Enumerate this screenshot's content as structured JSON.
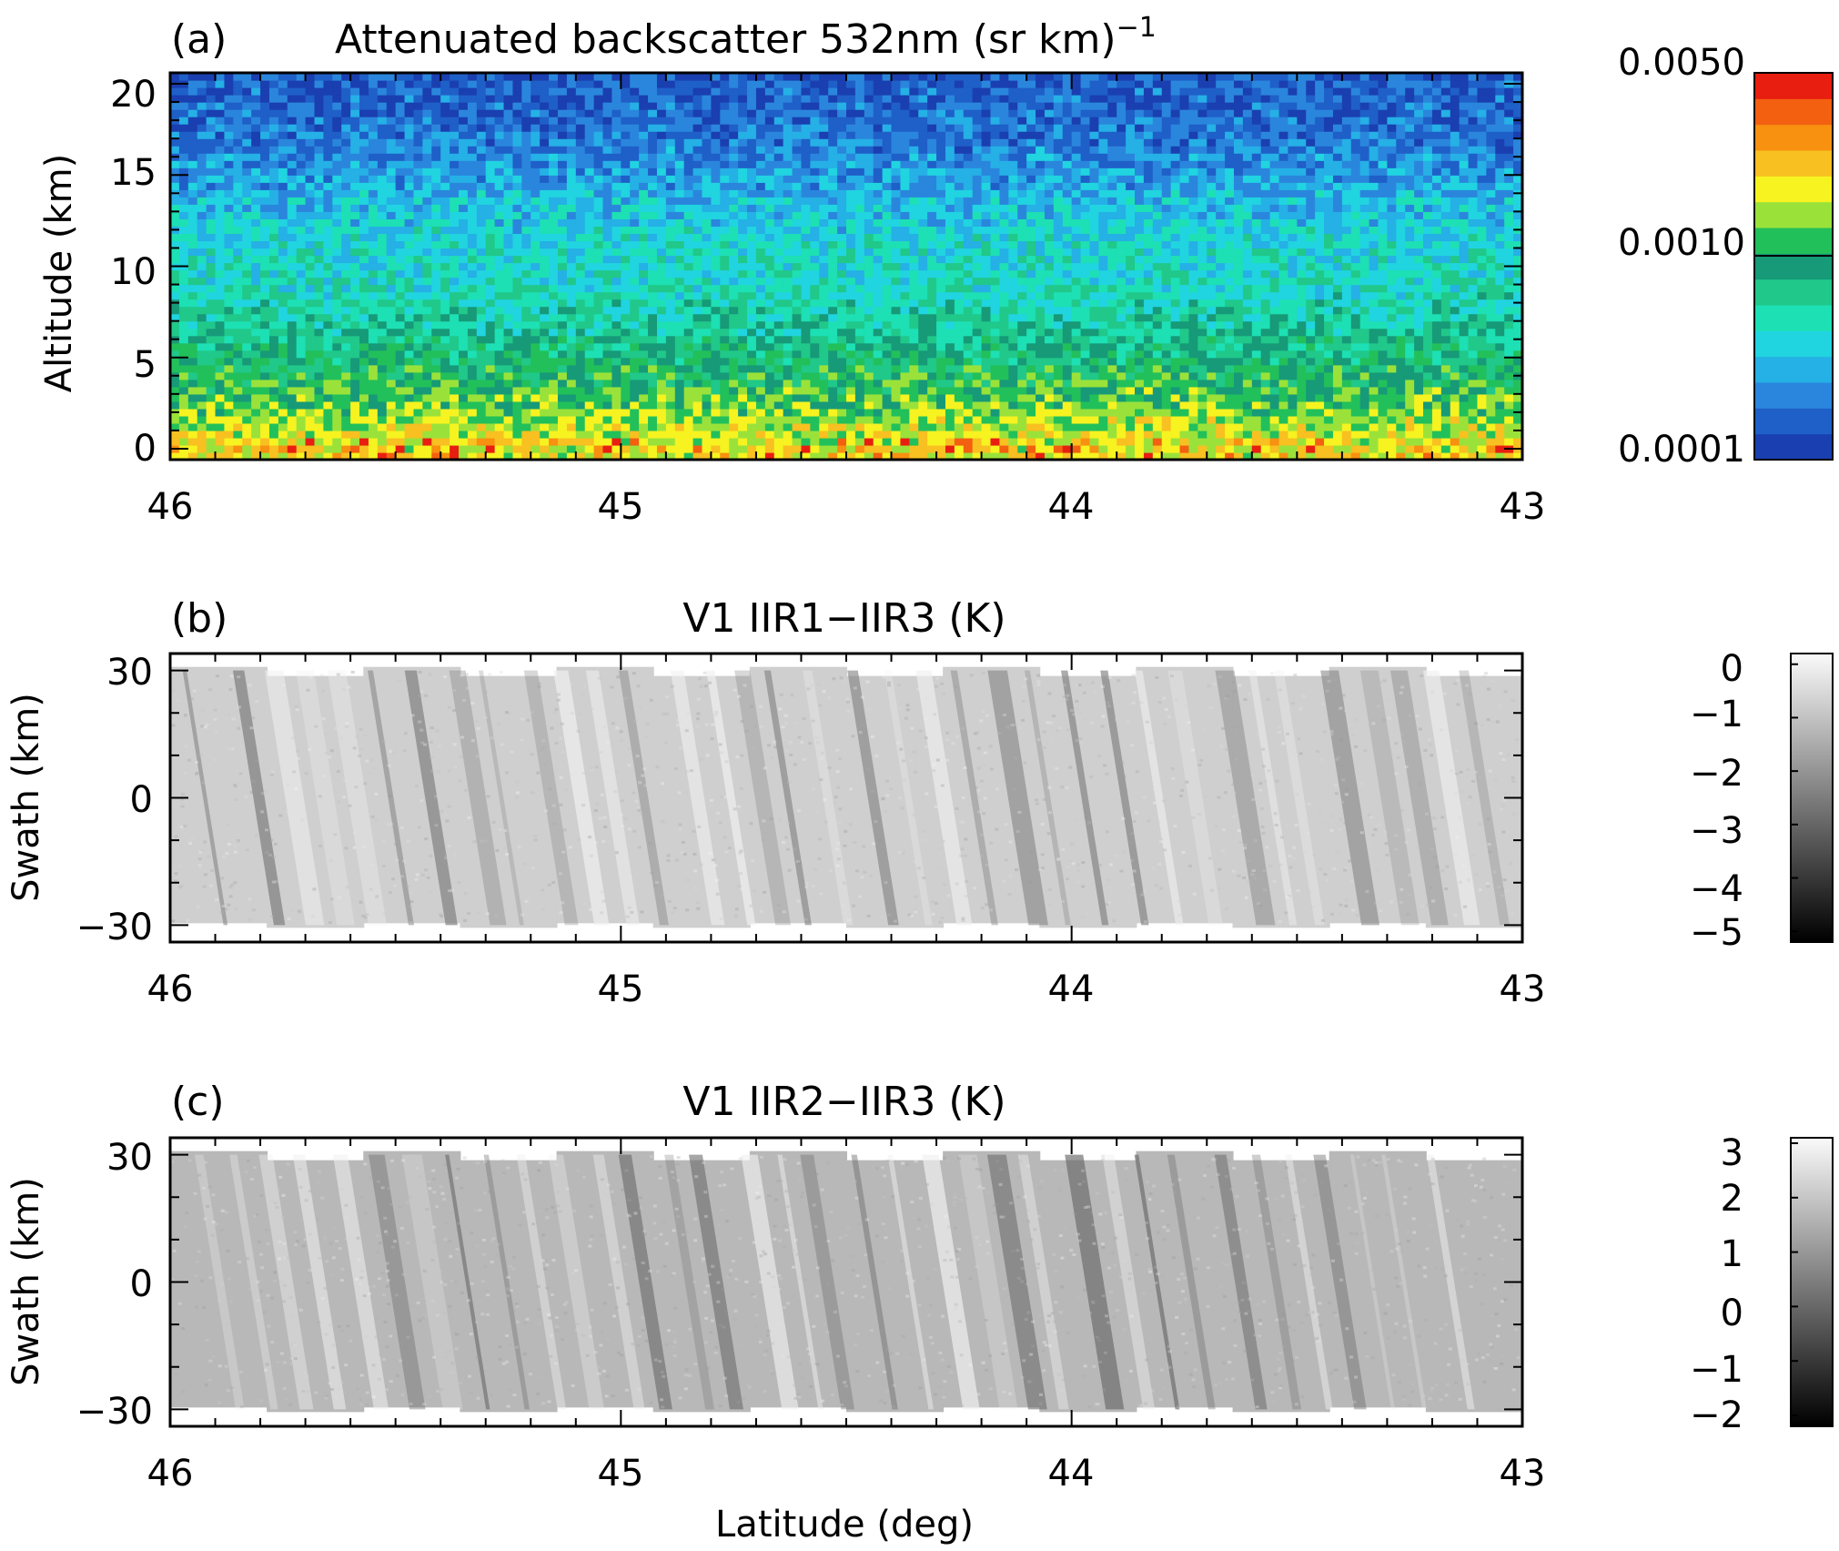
{
  "figure": {
    "panels": [
      {
        "id": "a",
        "label": "(a)",
        "title_main": "Attenuated backscatter 532nm (sr km)",
        "title_exponent": "−1",
        "ylabel": "Altitude (km)",
        "xticks": [
          "46",
          "45",
          "44",
          "43"
        ],
        "yticks": [
          "0",
          "5",
          "10",
          "15",
          "20"
        ],
        "colorbar_ticks": [
          "0.0050",
          "0.0010",
          "0.0001"
        ]
      },
      {
        "id": "b",
        "label": "(b)",
        "title_main": "V1 IIR1−IIR3 (K)",
        "ylabel": "Swath (km)",
        "xticks": [
          "46",
          "45",
          "44",
          "43"
        ],
        "yticks": [
          "−30",
          "0",
          "30"
        ],
        "colorbar_ticks": [
          "0",
          "−1",
          "−2",
          "−3",
          "−4",
          "−5"
        ]
      },
      {
        "id": "c",
        "label": "(c)",
        "title_main": "V1 IIR2−IIR3 (K)",
        "ylabel": "Swath (km)",
        "xlabel": "Latitude (deg)",
        "xticks": [
          "46",
          "45",
          "44",
          "43"
        ],
        "yticks": [
          "−30",
          "0",
          "30"
        ],
        "colorbar_ticks": [
          "3",
          "2",
          "1",
          "0",
          "−1",
          "−2"
        ]
      }
    ]
  },
  "chart_data": [
    {
      "type": "heatmap",
      "panel": "a",
      "x_name": "Latitude (deg)",
      "xlim": [
        46,
        43
      ],
      "y_name": "Altitude (km)",
      "ylim": [
        -0.6,
        20.6
      ],
      "colorbar": {
        "scale": "log",
        "range": [
          0.0001,
          0.005
        ],
        "ticks": [
          0.005,
          0.001,
          0.0001
        ],
        "palette": "rainbow"
      },
      "colormap": [
        "#1a3fb0",
        "#1f5fc8",
        "#2a86dc",
        "#25b0e6",
        "#20d4e0",
        "#1de0b4",
        "#20c88a",
        "#169a78",
        "#22c05a",
        "#9ae23a",
        "#f6f320",
        "#f8c020",
        "#f89010",
        "#f36010",
        "#e81e10"
      ],
      "description_profile": [
        {
          "altitude_km": 0.0,
          "level": 10
        },
        {
          "altitude_km": 1.5,
          "level": 9
        },
        {
          "altitude_km": 3.0,
          "level": 8
        },
        {
          "altitude_km": 5.0,
          "level": 6.5
        },
        {
          "altitude_km": 8.0,
          "level": 5
        },
        {
          "altitude_km": 12.0,
          "level": 4
        },
        {
          "altitude_km": 15.0,
          "level": 2.5
        },
        {
          "altitude_km": 18.0,
          "level": 1.2
        },
        {
          "altitude_km": 20.5,
          "level": 0.8
        }
      ]
    },
    {
      "type": "heatmap",
      "panel": "b",
      "x_name": "Latitude (deg)",
      "xlim": [
        46,
        43
      ],
      "y_name": "Swath (km)",
      "ylim": [
        -34,
        34
      ],
      "colorbar": {
        "scale": "linear",
        "range": [
          -5.2,
          0.2
        ],
        "ticks": [
          0,
          -1,
          -2,
          -3,
          -4,
          -5
        ],
        "palette": "grayscale"
      },
      "typical_value": -1.5,
      "stripe_minimum": -2.4
    },
    {
      "type": "heatmap",
      "panel": "c",
      "x_name": "Latitude (deg)",
      "xlim": [
        46,
        43
      ],
      "y_name": "Swath (km)",
      "ylim": [
        -34,
        34
      ],
      "colorbar": {
        "scale": "linear",
        "range": [
          -2.2,
          3.1
        ],
        "ticks": [
          3,
          2,
          1,
          0,
          -1,
          -2
        ],
        "palette": "grayscale"
      },
      "typical_value": 1.5,
      "stripe_minimum": 0.6
    }
  ]
}
